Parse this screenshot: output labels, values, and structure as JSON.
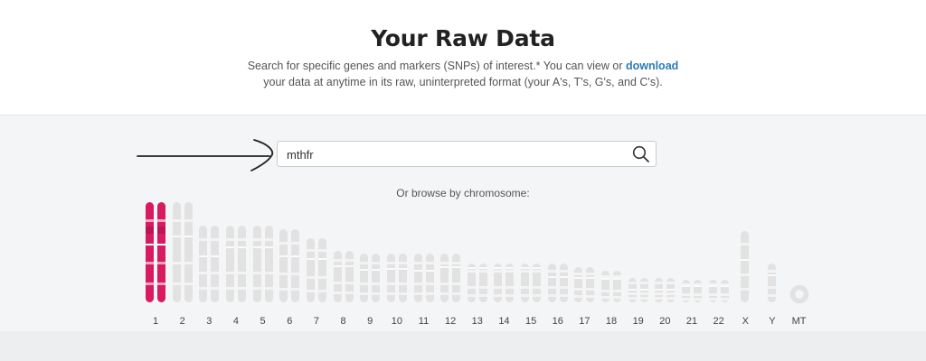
{
  "page": {
    "title": "Your Raw Data",
    "intro_before": "Search for specific genes and markers (SNPs) of interest.* You can view or ",
    "download_label": "download",
    "intro_after": " your data at anytime in its raw, uninterpreted format (your A's, T's, G's, and C's)."
  },
  "search": {
    "value": "mthfr",
    "icon": "search-icon"
  },
  "browse_label": "Or browse by chromosome:",
  "colors": {
    "selected": "#d81b60",
    "chromosome": "#e2e2e2",
    "link": "#2b7bb9"
  },
  "chromosomes": [
    {
      "label": "1",
      "selected": true
    },
    {
      "label": "2",
      "selected": false
    },
    {
      "label": "3",
      "selected": false
    },
    {
      "label": "4",
      "selected": false
    },
    {
      "label": "5",
      "selected": false
    },
    {
      "label": "6",
      "selected": false
    },
    {
      "label": "7",
      "selected": false
    },
    {
      "label": "8",
      "selected": false
    },
    {
      "label": "9",
      "selected": false
    },
    {
      "label": "10",
      "selected": false
    },
    {
      "label": "11",
      "selected": false
    },
    {
      "label": "12",
      "selected": false
    },
    {
      "label": "13",
      "selected": false
    },
    {
      "label": "14",
      "selected": false
    },
    {
      "label": "15",
      "selected": false
    },
    {
      "label": "16",
      "selected": false
    },
    {
      "label": "17",
      "selected": false
    },
    {
      "label": "18",
      "selected": false
    },
    {
      "label": "19",
      "selected": false
    },
    {
      "label": "20",
      "selected": false
    },
    {
      "label": "21",
      "selected": false
    },
    {
      "label": "22",
      "selected": false
    },
    {
      "label": "X",
      "selected": false
    },
    {
      "label": "Y",
      "selected": false
    },
    {
      "label": "MT",
      "selected": false
    }
  ]
}
